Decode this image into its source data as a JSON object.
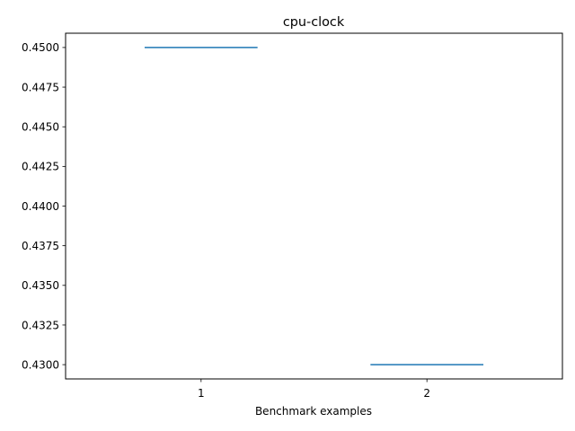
{
  "chart_data": {
    "type": "violin",
    "title": "cpu-clock",
    "xlabel": "Benchmark examples",
    "ylabel": "",
    "x_ticks": [
      1,
      2
    ],
    "x_tick_labels": [
      "1",
      "2"
    ],
    "xlim": [
      0.4,
      2.6
    ],
    "ylim": [
      0.4291,
      0.4509
    ],
    "y_ticks": [
      0.43,
      0.4325,
      0.435,
      0.4375,
      0.44,
      0.4425,
      0.445,
      0.4475,
      0.45
    ],
    "y_tick_labels": [
      "0.4300",
      "0.4325",
      "0.4350",
      "0.4375",
      "0.4400",
      "0.4425",
      "0.4450",
      "0.4475",
      "0.4500"
    ],
    "series": [
      {
        "values": [
          0.45,
          0.43
        ]
      }
    ],
    "grid": false,
    "colors": {
      "series": "#1f77b4"
    }
  }
}
